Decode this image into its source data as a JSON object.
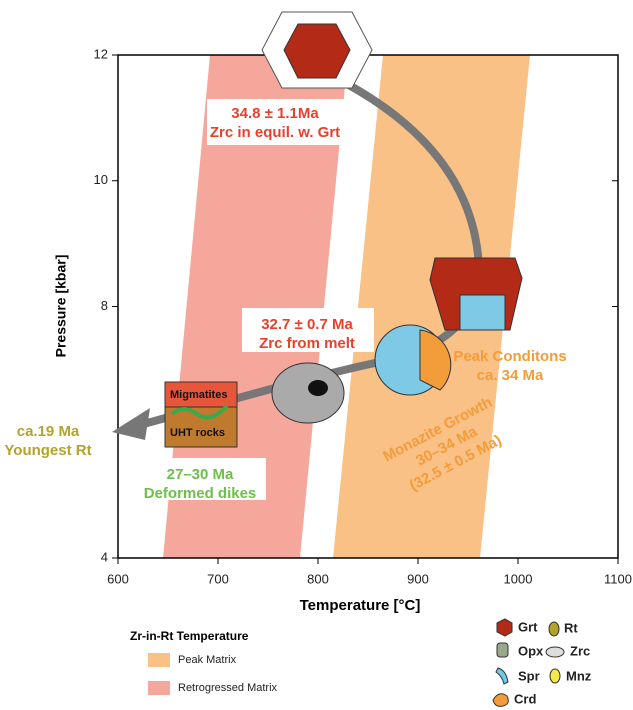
{
  "chart_data": {
    "type": "band",
    "xlabel": "Temperature [°C]",
    "ylabel": "Pressure [kbar]",
    "xlim": [
      600,
      1100
    ],
    "ylim": [
      4,
      12
    ],
    "xticks": [
      600,
      700,
      800,
      900,
      1000,
      1100
    ],
    "yticks": [
      4,
      8,
      10,
      12
    ],
    "legend_title": "Zr-in-Rt Temperature",
    "series": [
      {
        "name": "Peak Matrix",
        "color": "#f9c185",
        "x": [
          815,
          962,
          1012,
          865
        ],
        "y": [
          4,
          4,
          12,
          12
        ]
      },
      {
        "name": "Retrogressed Matrix",
        "color": "#f5a79c",
        "x": [
          645,
          782,
          830,
          692
        ],
        "y": [
          4,
          4,
          12,
          12
        ]
      }
    ],
    "annotations": [
      {
        "lines": [
          "34.8 ± 1.1Ma",
          "Zrc in equil. w. Grt"
        ],
        "color": "#e8412b"
      },
      {
        "lines": [
          "32.7 ± 0.7 Ma",
          "Zrc from melt"
        ],
        "color": "#e8412b"
      },
      {
        "lines": [
          "Peak Conditons",
          "ca. 34 Ma"
        ],
        "color": "#f39c3a"
      },
      {
        "lines": [
          "Monazite Growth",
          "30–34 Ma",
          "(32.5 ± 0.5 Ma)"
        ],
        "color": "#f39c3a"
      },
      {
        "lines": [
          "ca.19 Ma",
          "Youngest Rt"
        ],
        "color": "#b5a22a"
      },
      {
        "lines": [
          "27–30 Ma",
          "Deformed dikes"
        ],
        "color": "#6cc04a"
      },
      {
        "lines": [
          "Migmatites",
          "UHT rocks"
        ],
        "color": "#111"
      }
    ]
  },
  "minerals": {
    "labels": [
      "Grt",
      "Rt",
      "Opx",
      "Zrc",
      "Spr",
      "Mnz",
      "Crd"
    ]
  }
}
